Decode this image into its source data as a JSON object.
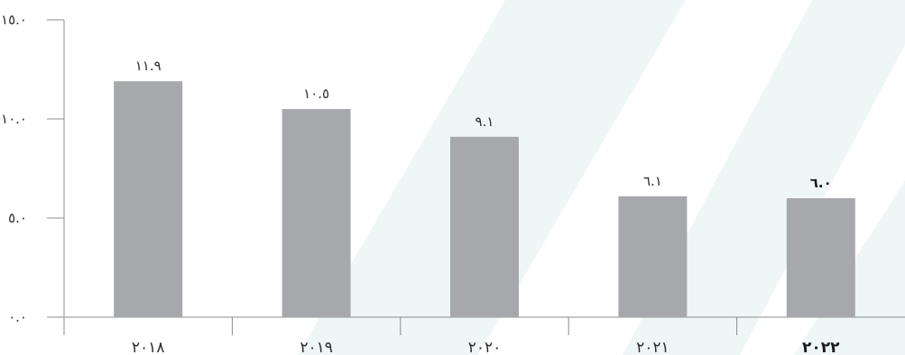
{
  "chart_data": {
    "type": "bar",
    "title": "",
    "xlabel": "",
    "ylabel": "",
    "ylim": [
      0,
      15
    ],
    "yticks": [
      0,
      5,
      10,
      15
    ],
    "ytick_labels": [
      "٠.٠",
      "٥.٠",
      "١٠.٠",
      "١٥.٠"
    ],
    "categories": [
      "٢٠١٨",
      "٢٠١٩",
      "٢٠٢٠",
      "٢٠٢١",
      "٢٠٢٢"
    ],
    "values": [
      11.9,
      10.5,
      9.1,
      6.1,
      6.0
    ],
    "value_labels": [
      "١١.٩",
      "١٠.٥",
      "٩.١",
      "٦.١",
      "٦.٠"
    ],
    "highlight_index": 4,
    "colors": {
      "bar": "#a7a8ac",
      "axis": "#8c8c8c",
      "text": "#2f2f2f",
      "background_stripe": "#e8f4f2"
    },
    "grid": false,
    "legend": "none"
  }
}
